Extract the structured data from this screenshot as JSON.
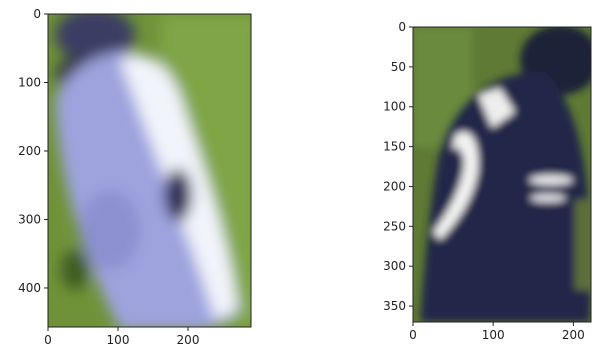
{
  "chart_data": [
    {
      "type": "image",
      "title": "",
      "xlabel": "",
      "ylabel": "",
      "image_width": 290,
      "image_height": 457,
      "xlim": [
        0,
        290
      ],
      "ylim": [
        457,
        0
      ],
      "x_ticks": [
        0,
        100,
        200
      ],
      "y_ticks": [
        0,
        100,
        200,
        300,
        400
      ],
      "content": "crop of a person in light lavender/white clothing on a green background",
      "colors": {
        "background_green": "#6f9238",
        "shirt_lavender": "#9a9fdc",
        "shirt_white": "#f4f6fb",
        "dark": "#2e2f57"
      }
    },
    {
      "type": "image",
      "title": "",
      "xlabel": "",
      "ylabel": "",
      "image_width": 222,
      "image_height": 370,
      "xlim": [
        0,
        222
      ],
      "ylim": [
        370,
        0
      ],
      "x_ticks": [
        0,
        100,
        200
      ],
      "y_ticks": [
        0,
        50,
        100,
        150,
        200,
        250,
        300,
        350
      ],
      "content": "crop of a dark navy jersey with white numeral on a green background",
      "colors": {
        "background_green": "#5e7a34",
        "jersey_navy": "#23284a",
        "numeral_white": "#f3f3f3"
      }
    }
  ]
}
